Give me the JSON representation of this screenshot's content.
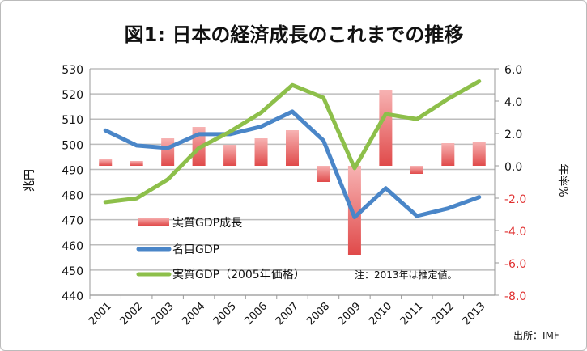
{
  "chart_data": {
    "type": "bar+line",
    "title": "図1: 日本の経済成長のこれまでの推移",
    "ylabel_left": "兆円",
    "ylabel_right": "年率%",
    "categories": [
      "2001",
      "2002",
      "2003",
      "2004",
      "2005",
      "2006",
      "2007",
      "2008",
      "2009",
      "2010",
      "2011",
      "2012",
      "2013"
    ],
    "ylim_left": [
      440,
      530
    ],
    "yticks_left": [
      "440",
      "450",
      "460",
      "470",
      "480",
      "490",
      "500",
      "510",
      "520",
      "530"
    ],
    "ylim_right": [
      -8,
      6
    ],
    "yticks_right": [
      "-8.0",
      "-6.0",
      "-4.0",
      "-2.0",
      "0.0",
      "2.0",
      "4.0",
      "6.0"
    ],
    "grid": true,
    "legend_placement": "bottom-left inside",
    "series": [
      {
        "name": "実質GDP成長",
        "type": "bar",
        "axis": "right",
        "color": "#e8595a",
        "values": [
          0.4,
          0.3,
          1.7,
          2.4,
          1.3,
          1.7,
          2.2,
          -1.0,
          -5.5,
          4.7,
          -0.5,
          1.4,
          1.5
        ]
      },
      {
        "name": "名目GDP",
        "type": "line",
        "axis": "left",
        "color": "#4a86c8",
        "values": [
          505.5,
          499.5,
          498.5,
          504,
          504,
          507,
          513,
          501.5,
          471,
          482.5,
          471.5,
          474.5,
          479
        ]
      },
      {
        "name": "実質GDP（2005年価格）",
        "type": "line",
        "axis": "left",
        "color": "#8dbf4a",
        "values": [
          477,
          478.5,
          486,
          498.5,
          505,
          512.6,
          523.5,
          518.5,
          490.5,
          512,
          510,
          518,
          525
        ]
      }
    ],
    "note": "注：2013年は推定値。",
    "source": "出所：IMF",
    "negative_tick_color": "#e03030"
  }
}
